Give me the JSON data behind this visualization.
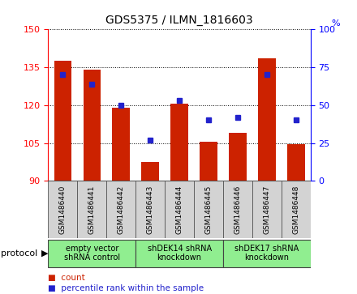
{
  "title": "GDS5375 / ILMN_1816603",
  "samples": [
    "GSM1486440",
    "GSM1486441",
    "GSM1486442",
    "GSM1486443",
    "GSM1486444",
    "GSM1486445",
    "GSM1486446",
    "GSM1486447",
    "GSM1486448"
  ],
  "counts": [
    137.5,
    134.0,
    119.0,
    97.5,
    120.5,
    105.5,
    109.0,
    138.5,
    104.5
  ],
  "percentiles": [
    70,
    64,
    50,
    27,
    53,
    40,
    42,
    70,
    40
  ],
  "ymin": 90,
  "ymax": 150,
  "yticks": [
    90,
    105,
    120,
    135,
    150
  ],
  "y2ticks": [
    0,
    25,
    50,
    75,
    100
  ],
  "bar_color": "#CC2200",
  "dot_color": "#2222CC",
  "protocols": [
    {
      "label": "empty vector\nshRNA control",
      "span": [
        0,
        3
      ]
    },
    {
      "label": "shDEK14 shRNA\nknockdown",
      "span": [
        3,
        6
      ]
    },
    {
      "label": "shDEK17 shRNA\nknockdown",
      "span": [
        6,
        9
      ]
    }
  ],
  "legend_count_label": "count",
  "legend_pct_label": "percentile rank within the sample",
  "protocol_label": "protocol",
  "background_color": "#ffffff",
  "plot_bg_color": "#ffffff",
  "tick_bg_color": "#d3d3d3",
  "proto_bg_color": "#90EE90"
}
